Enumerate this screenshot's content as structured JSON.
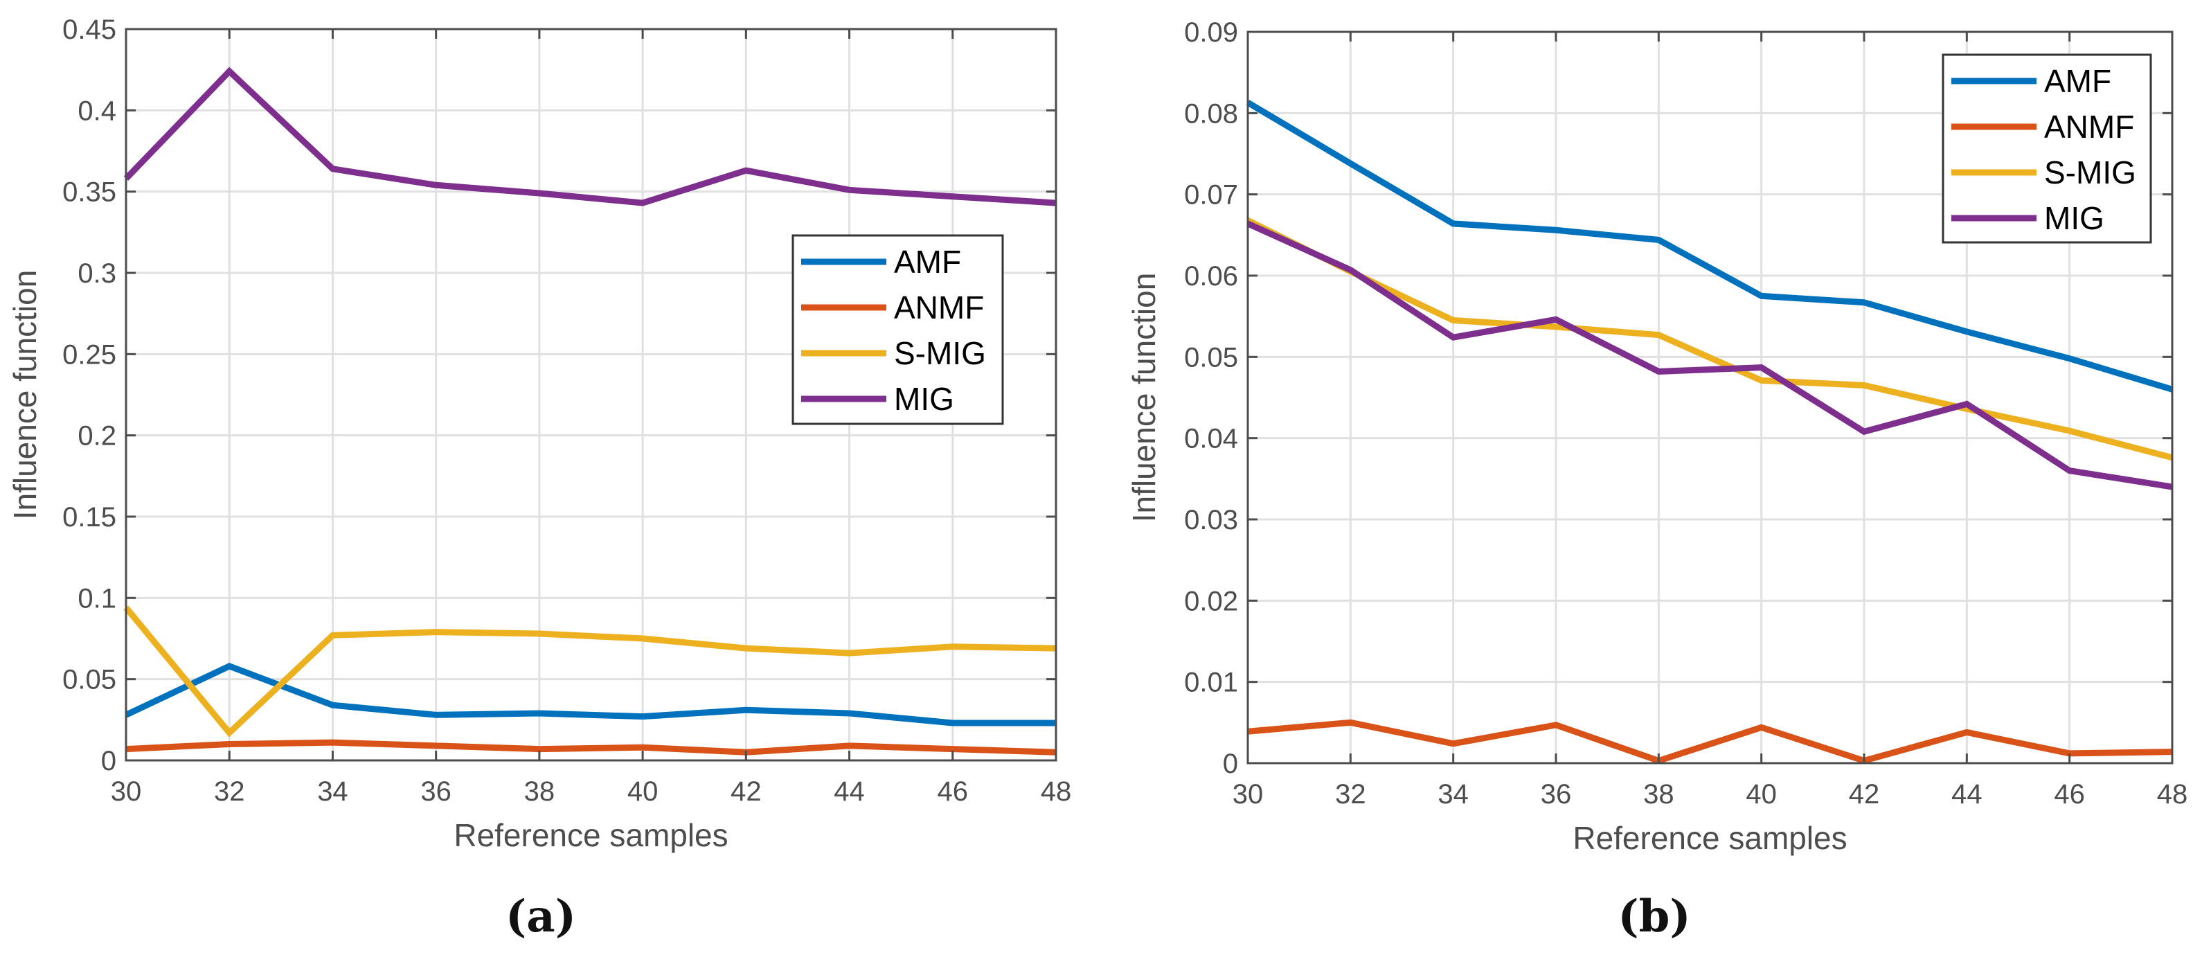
{
  "chart_data": [
    {
      "type": "line",
      "caption": "(a)",
      "xlabel": "Reference samples",
      "ylabel": "Influence function",
      "xlim": [
        30,
        48
      ],
      "ylim": [
        0,
        0.45
      ],
      "grid": true,
      "legend_position": "center-right",
      "x": [
        30,
        32,
        34,
        36,
        38,
        40,
        42,
        44,
        46,
        48
      ],
      "xticks": [
        "30",
        "32",
        "34",
        "36",
        "38",
        "40",
        "42",
        "44",
        "46",
        "48"
      ],
      "yticks": [
        "0",
        "0.05",
        "0.1",
        "0.15",
        "0.2",
        "0.25",
        "0.3",
        "0.35",
        "0.4",
        "0.45"
      ],
      "series": [
        {
          "name": "AMF",
          "color": "#0072BD",
          "values": [
            0.028,
            0.058,
            0.034,
            0.028,
            0.029,
            0.027,
            0.031,
            0.029,
            0.023,
            0.023
          ]
        },
        {
          "name": "ANMF",
          "color": "#D95319",
          "values": [
            0.007,
            0.01,
            0.011,
            0.009,
            0.007,
            0.008,
            0.005,
            0.009,
            0.007,
            0.005
          ]
        },
        {
          "name": "S-MIG",
          "color": "#EDB120",
          "values": [
            0.094,
            0.017,
            0.077,
            0.079,
            0.078,
            0.075,
            0.069,
            0.066,
            0.07,
            0.069
          ]
        },
        {
          "name": "MIG",
          "color": "#7E2F8E",
          "values": [
            0.358,
            0.424,
            0.364,
            0.354,
            0.349,
            0.343,
            0.363,
            0.351,
            0.347,
            0.343
          ]
        }
      ]
    },
    {
      "type": "line",
      "caption": "(b)",
      "xlabel": "Reference samples",
      "ylabel": "Influence function",
      "xlim": [
        30,
        48
      ],
      "ylim": [
        0,
        0.09
      ],
      "grid": true,
      "legend_position": "top-right",
      "x": [
        30,
        32,
        34,
        36,
        38,
        40,
        42,
        44,
        46,
        48
      ],
      "xticks": [
        "30",
        "32",
        "34",
        "36",
        "38",
        "40",
        "42",
        "44",
        "46",
        "48"
      ],
      "yticks": [
        "0",
        "0.01",
        "0.02",
        "0.03",
        "0.04",
        "0.05",
        "0.06",
        "0.07",
        "0.08",
        "0.09"
      ],
      "series": [
        {
          "name": "AMF",
          "color": "#0072BD",
          "values": [
            0.0813,
            0.0738,
            0.0664,
            0.0656,
            0.0644,
            0.0575,
            0.0567,
            0.0531,
            0.0498,
            0.046
          ]
        },
        {
          "name": "ANMF",
          "color": "#D95319",
          "values": [
            0.0039,
            0.005,
            0.0024,
            0.0047,
            0.0003,
            0.0044,
            0.0003,
            0.0038,
            0.0012,
            0.0014
          ]
        },
        {
          "name": "S-MIG",
          "color": "#EDB120",
          "values": [
            0.0668,
            0.0605,
            0.0545,
            0.0537,
            0.0527,
            0.0471,
            0.0465,
            0.0436,
            0.0409,
            0.0376
          ]
        },
        {
          "name": "MIG",
          "color": "#7E2F8E",
          "values": [
            0.0664,
            0.0607,
            0.0524,
            0.0546,
            0.0482,
            0.0487,
            0.0408,
            0.0442,
            0.036,
            0.034
          ]
        }
      ]
    }
  ]
}
